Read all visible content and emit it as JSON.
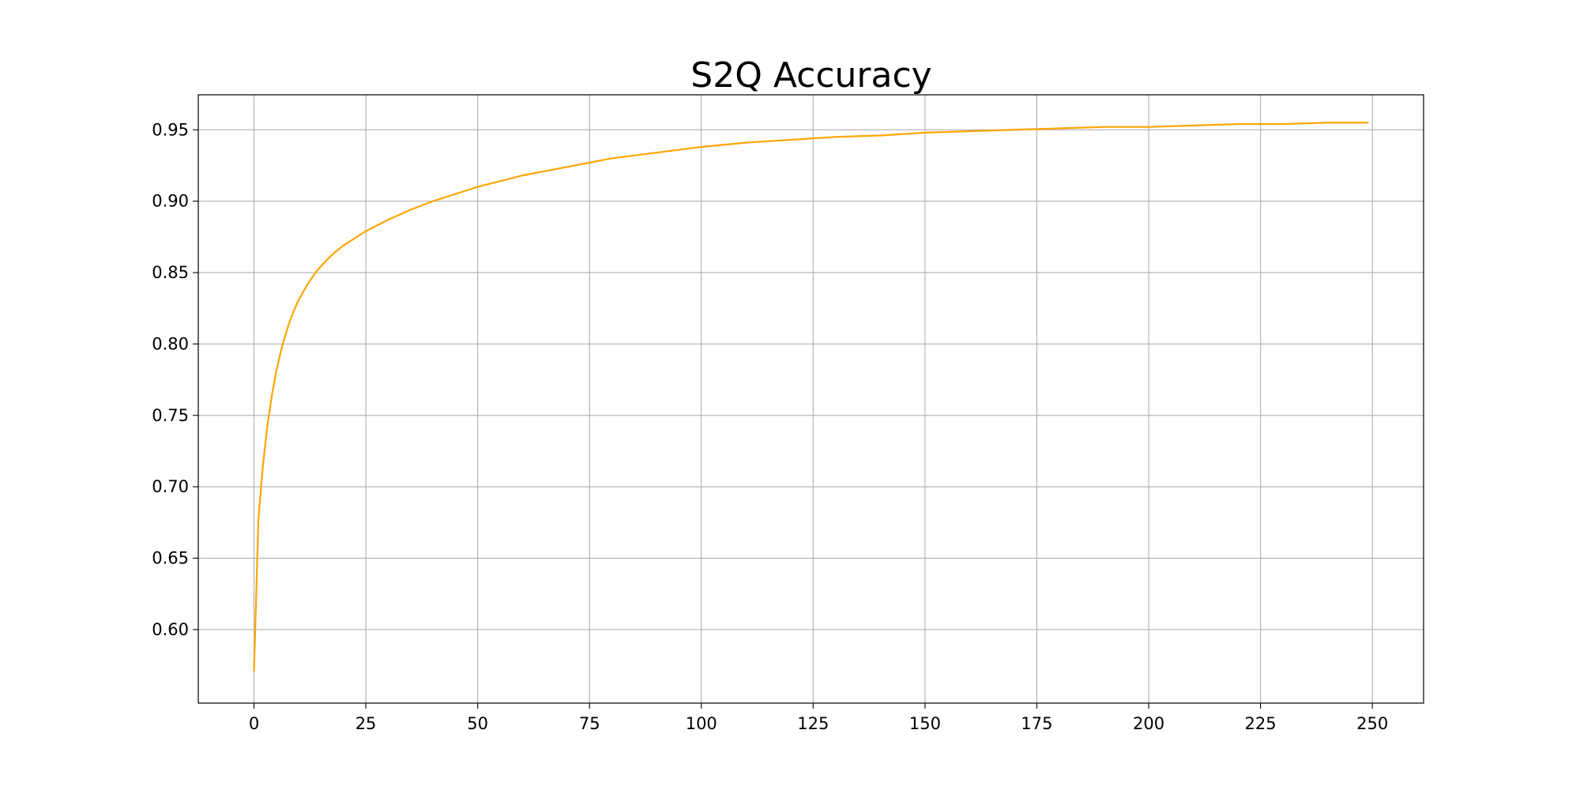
{
  "chart_data": {
    "type": "line",
    "title": "S2Q Accuracy",
    "xlabel": "",
    "ylabel": "",
    "xlim": [
      -12.45,
      261.45
    ],
    "ylim": [
      0.5485,
      0.9745
    ],
    "xticks": [
      0,
      25,
      50,
      75,
      100,
      125,
      150,
      175,
      200,
      225,
      250
    ],
    "yticks": [
      0.6,
      0.65,
      0.7,
      0.75,
      0.8,
      0.85,
      0.9,
      0.95
    ],
    "grid": true,
    "legend": "none",
    "series": [
      {
        "color": "#FFA500",
        "x": [
          0,
          1,
          2,
          3,
          4,
          5,
          6,
          7,
          8,
          9,
          10,
          12,
          14,
          16,
          18,
          20,
          25,
          30,
          35,
          40,
          45,
          50,
          55,
          60,
          65,
          70,
          75,
          80,
          85,
          90,
          95,
          100,
          110,
          120,
          130,
          140,
          150,
          160,
          170,
          180,
          190,
          200,
          210,
          220,
          230,
          240,
          249
        ],
        "y": [
          0.571,
          0.678,
          0.715,
          0.743,
          0.764,
          0.781,
          0.795,
          0.806,
          0.816,
          0.824,
          0.831,
          0.842,
          0.851,
          0.858,
          0.864,
          0.869,
          0.879,
          0.887,
          0.894,
          0.9,
          0.905,
          0.91,
          0.914,
          0.918,
          0.921,
          0.924,
          0.927,
          0.93,
          0.932,
          0.934,
          0.936,
          0.938,
          0.941,
          0.943,
          0.945,
          0.946,
          0.948,
          0.949,
          0.95,
          0.951,
          0.952,
          0.952,
          0.953,
          0.954,
          0.954,
          0.955,
          0.955
        ]
      }
    ]
  }
}
